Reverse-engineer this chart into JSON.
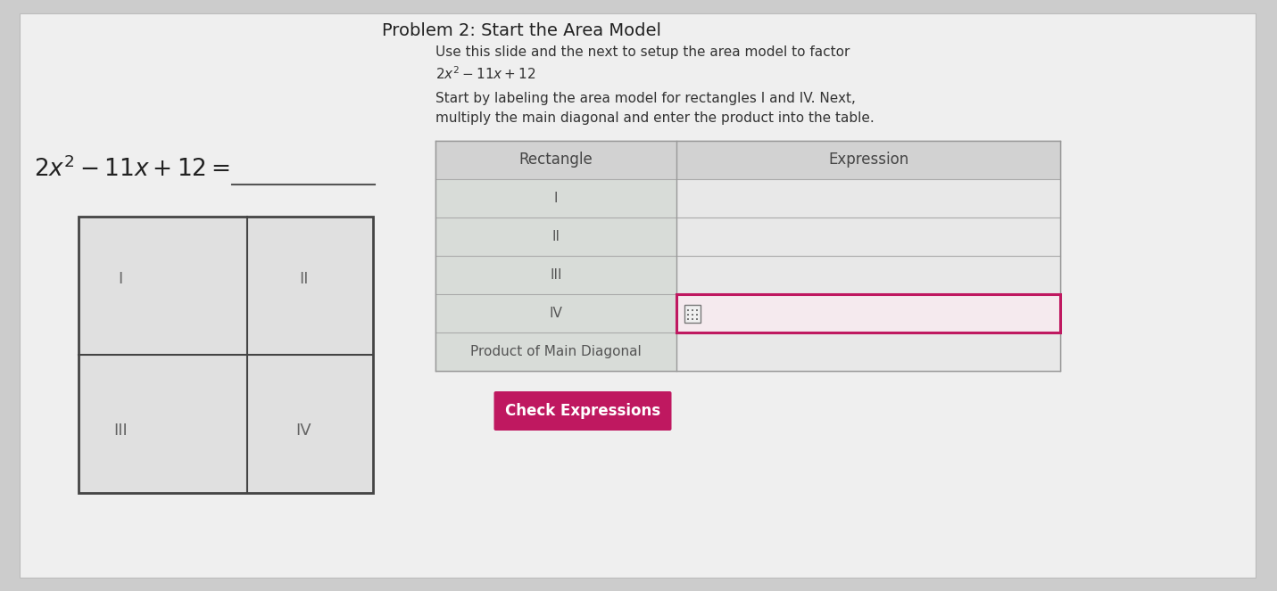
{
  "title": "Problem 2: Start the Area Model",
  "bg_color": "#cccccc",
  "slide_bg": "#efefef",
  "instruction_line1": "Use this slide and the next to setup the area model to factor",
  "instruction_line2": "$2x^2 - 11x + 12$",
  "instruction_line3": "Start by labeling the area model for rectangles I and IV. Next,",
  "instruction_line4": "multiply the main diagonal and enter the product into the table.",
  "equation_text": "$2x^2 - 11x + 12 =$",
  "table_header_rect": "Rectangle",
  "table_header_expr": "Expression",
  "table_rows": [
    "I",
    "II",
    "III",
    "IV",
    "Product of Main Diagonal"
  ],
  "button_text": "Check Expressions",
  "button_color": "#bf1860",
  "button_text_color": "#ffffff",
  "row_iv_border_color": "#bf1860",
  "title_color": "#222222",
  "text_color": "#333333",
  "header_bg": "#d0d0d0",
  "left_cell_bg": "#dcdcdc",
  "right_cell_bg": "#e8e8e8",
  "table_border": "#999999",
  "grid_bg": "#e0e0e0",
  "grid_border": "#444444"
}
